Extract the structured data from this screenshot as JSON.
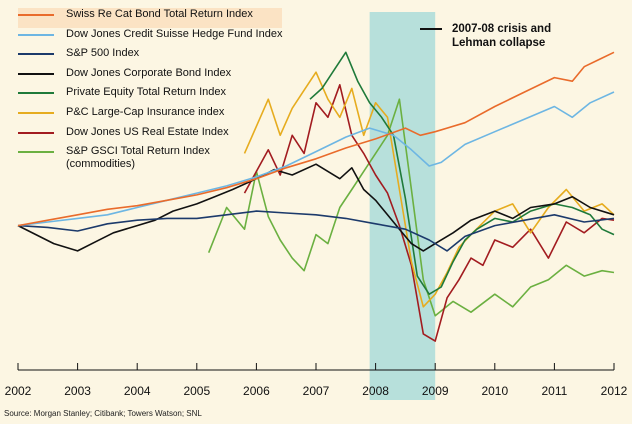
{
  "source": "Source: Morgan Stanley; Citibank; Towers Watson; SNL",
  "annotation": "2007-08 crisis and\nLehman collapse",
  "chart_data": {
    "type": "line",
    "title": "",
    "xlabel": "",
    "ylabel": "",
    "x_ticks": [
      "2002",
      "2003",
      "2004",
      "2005",
      "2006",
      "2007",
      "2008",
      "2009",
      "2010",
      "2011",
      "2012"
    ],
    "xlim": [
      2002,
      2012
    ],
    "y_axis_labels": "none",
    "shaded_region": {
      "from": 2007.9,
      "to": 2009.0,
      "color": "#b7e0db",
      "label": "2007-08 crisis and\nLehman collapse"
    },
    "legend_position": "top-left",
    "series": [
      {
        "name": "Swiss Re Cat Bond Total Return Index",
        "color": "#e96b2b",
        "x": [
          2002,
          2002.5,
          2003,
          2003.5,
          2004,
          2004.5,
          2005,
          2005.5,
          2006,
          2006.5,
          2007,
          2007.5,
          2008,
          2008.5,
          2008.75,
          2009,
          2009.5,
          2010,
          2010.5,
          2011,
          2011.3,
          2011.5,
          2011.75,
          2012
        ],
        "y": [
          100,
          103,
          106,
          109,
          111,
          114,
          117,
          121,
          126,
          132,
          137,
          143,
          148,
          154,
          150,
          152,
          157,
          166,
          174,
          182,
          180,
          188,
          192,
          196
        ]
      },
      {
        "name": "Dow Jones Credit Suisse Hedge Fund Index",
        "color": "#6db6e3",
        "x": [
          2002,
          2002.5,
          2003,
          2003.5,
          2004,
          2004.5,
          2005,
          2005.5,
          2006,
          2006.5,
          2007,
          2007.5,
          2007.9,
          2008.3,
          2008.6,
          2008.9,
          2009.1,
          2009.5,
          2010,
          2010.5,
          2011,
          2011.3,
          2011.6,
          2012
        ],
        "y": [
          100,
          102,
          104,
          106,
          110,
          114,
          118,
          122,
          127,
          133,
          141,
          149,
          154,
          150,
          142,
          133,
          135,
          145,
          152,
          159,
          166,
          160,
          168,
          174
        ]
      },
      {
        "name": "S&P 500 Index",
        "color": "#1c3a6b",
        "x": [
          2002,
          2002.5,
          2003,
          2003.5,
          2004,
          2004.5,
          2005,
          2005.5,
          2006,
          2006.5,
          2007,
          2007.5,
          2008,
          2008.5,
          2008.9,
          2009.2,
          2009.5,
          2010,
          2010.5,
          2011,
          2011.5,
          2012
        ],
        "y": [
          100,
          99,
          97,
          101,
          103,
          104,
          104,
          106,
          108,
          107,
          106,
          104,
          101,
          98,
          92,
          86,
          94,
          100,
          103,
          106,
          102,
          104
        ]
      },
      {
        "name": "Dow Jones Corporate Bond Index",
        "color": "#111111",
        "x": [
          2002,
          2002.3,
          2002.6,
          2003,
          2003.3,
          2003.6,
          2004,
          2004.3,
          2004.6,
          2005,
          2005.3,
          2005.6,
          2006,
          2006.3,
          2006.6,
          2007,
          2007.2,
          2007.4,
          2007.6,
          2007.8,
          2008,
          2008.2,
          2008.4,
          2008.6,
          2008.8,
          2009,
          2009.3,
          2009.6,
          2010,
          2010.3,
          2010.6,
          2011,
          2011.3,
          2011.6,
          2012
        ],
        "y": [
          100,
          95,
          90,
          86,
          91,
          96,
          100,
          103,
          108,
          112,
          116,
          120,
          126,
          131,
          128,
          134,
          130,
          126,
          132,
          120,
          114,
          106,
          98,
          90,
          86,
          90,
          96,
          103,
          108,
          104,
          110,
          112,
          116,
          110,
          106
        ]
      },
      {
        "name": "Private Equity Total Return Index",
        "color": "#1f7a3a",
        "x": [
          2006.9,
          2007.1,
          2007.3,
          2007.5,
          2007.7,
          2007.9,
          2008.1,
          2008.3,
          2008.5,
          2008.7,
          2008.9,
          2009.1,
          2009.3,
          2009.5,
          2009.7,
          2010,
          2010.3,
          2010.6,
          2011,
          2011.3,
          2011.6,
          2011.8,
          2012
        ],
        "y": [
          170,
          176,
          186,
          196,
          180,
          168,
          160,
          150,
          115,
          72,
          62,
          66,
          80,
          92,
          98,
          104,
          102,
          108,
          112,
          110,
          106,
          98,
          95
        ]
      },
      {
        "name": "P&C Large-Cap Insurance index",
        "color": "#e6ac1f",
        "x": [
          2005.8,
          2006,
          2006.2,
          2006.4,
          2006.6,
          2006.8,
          2007,
          2007.2,
          2007.4,
          2007.6,
          2007.8,
          2008,
          2008.2,
          2008.4,
          2008.6,
          2008.8,
          2009,
          2009.2,
          2009.4,
          2009.6,
          2010,
          2010.3,
          2010.6,
          2010.9,
          2011.2,
          2011.5,
          2011.8,
          2012
        ],
        "y": [
          140,
          155,
          170,
          150,
          165,
          175,
          185,
          170,
          160,
          176,
          150,
          168,
          160,
          120,
          80,
          55,
          62,
          74,
          88,
          95,
          108,
          112,
          96,
          110,
          120,
          108,
          112,
          106
        ]
      },
      {
        "name": "Dow Jones US Real Estate Index",
        "color": "#a21c20",
        "x": [
          2005.8,
          2006,
          2006.2,
          2006.4,
          2006.6,
          2006.8,
          2007,
          2007.2,
          2007.4,
          2007.6,
          2007.8,
          2008,
          2008.2,
          2008.4,
          2008.6,
          2008.8,
          2009,
          2009.2,
          2009.4,
          2009.6,
          2009.8,
          2010,
          2010.3,
          2010.6,
          2010.9,
          2011.2,
          2011.5,
          2011.8,
          2012
        ],
        "y": [
          118,
          130,
          142,
          128,
          150,
          140,
          168,
          160,
          178,
          150,
          140,
          128,
          118,
          100,
          78,
          40,
          36,
          60,
          70,
          82,
          78,
          92,
          88,
          98,
          82,
          102,
          96,
          104,
          103
        ]
      },
      {
        "name": "S&P GSCI Total Return Index\n(commodities)",
        "color": "#6bb041",
        "x": [
          2005.2,
          2005.5,
          2005.8,
          2006,
          2006.2,
          2006.4,
          2006.6,
          2006.8,
          2007,
          2007.2,
          2007.4,
          2007.6,
          2007.8,
          2008,
          2008.2,
          2008.4,
          2008.6,
          2008.8,
          2009,
          2009.3,
          2009.6,
          2010,
          2010.3,
          2010.6,
          2010.9,
          2011.2,
          2011.5,
          2011.8,
          2012
        ],
        "y": [
          85,
          110,
          98,
          130,
          105,
          92,
          82,
          75,
          95,
          90,
          110,
          120,
          130,
          140,
          150,
          170,
          120,
          70,
          50,
          58,
          52,
          62,
          55,
          66,
          70,
          78,
          72,
          75,
          74
        ]
      }
    ]
  }
}
